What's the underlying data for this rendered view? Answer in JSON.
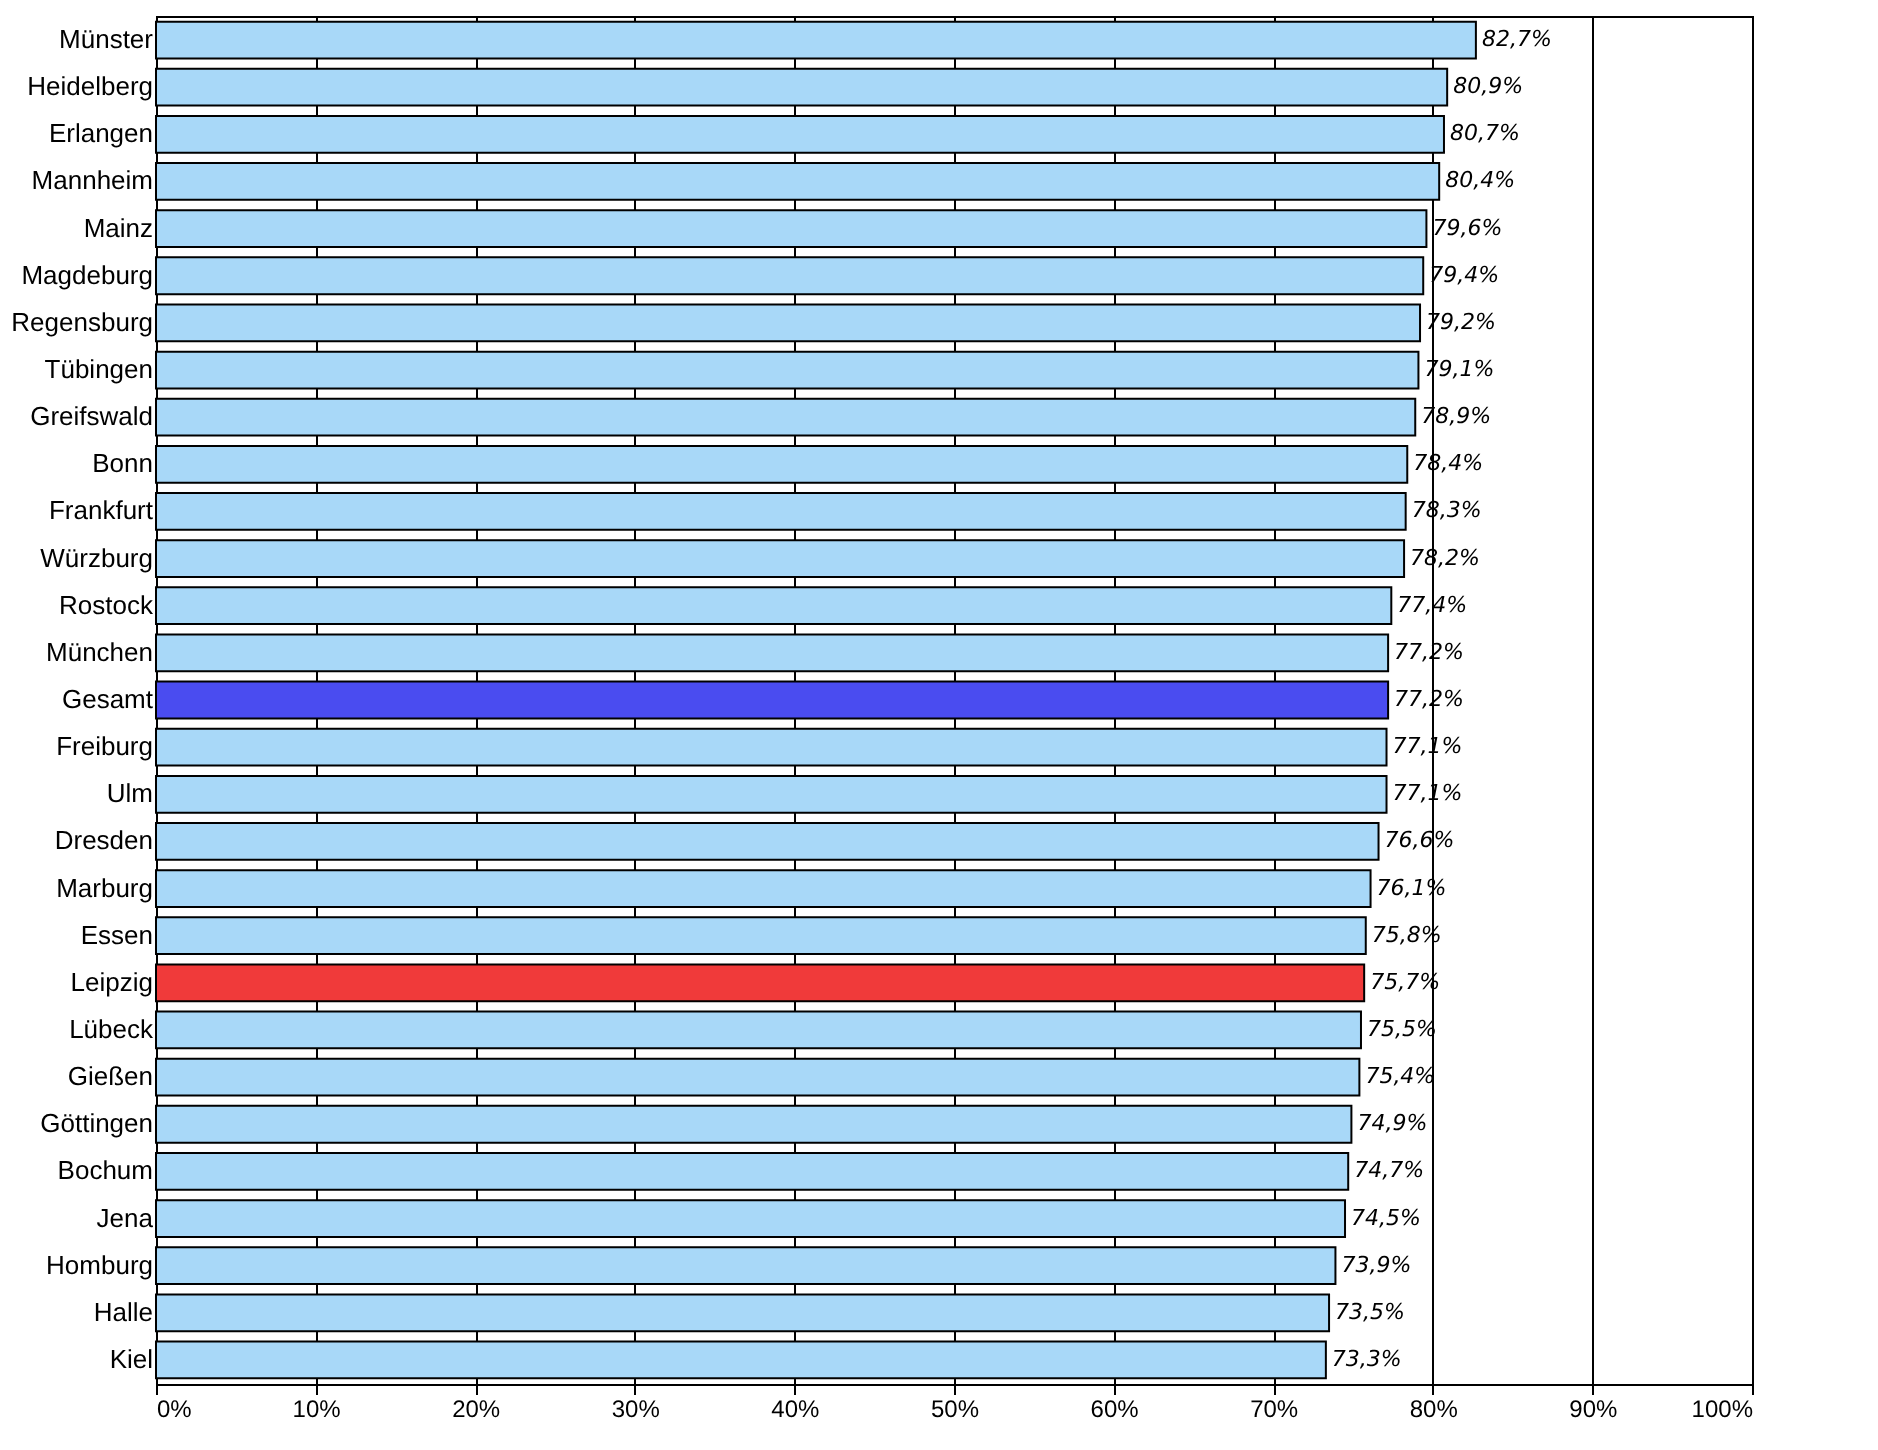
{
  "chart_data": {
    "type": "bar",
    "orientation": "horizontal",
    "categories": [
      "Münster",
      "Heidelberg",
      "Erlangen",
      "Mannheim",
      "Mainz",
      "Magdeburg",
      "Regensburg",
      "Tübingen",
      "Greifswald",
      "Bonn",
      "Frankfurt",
      "Würzburg",
      "Rostock",
      "München",
      "Gesamt",
      "Freiburg",
      "Ulm",
      "Dresden",
      "Marburg",
      "Essen",
      "Leipzig",
      "Lübeck",
      "Gießen",
      "Göttingen",
      "Bochum",
      "Jena",
      "Homburg",
      "Halle",
      "Kiel"
    ],
    "values": [
      82.7,
      80.9,
      80.7,
      80.4,
      79.6,
      79.4,
      79.2,
      79.1,
      78.9,
      78.4,
      78.3,
      78.2,
      77.4,
      77.2,
      77.2,
      77.1,
      77.1,
      76.6,
      76.1,
      75.8,
      75.7,
      75.5,
      75.4,
      74.9,
      74.7,
      74.5,
      73.9,
      73.5,
      73.3
    ],
    "value_labels": [
      "82,7%",
      "80,9%",
      "80,7%",
      "80,4%",
      "79,6%",
      "79,4%",
      "79,2%",
      "79,1%",
      "78,9%",
      "78,4%",
      "78,3%",
      "78,2%",
      "77,4%",
      "77,2%",
      "77,2%",
      "77,1%",
      "77,1%",
      "76,6%",
      "76,1%",
      "75,8%",
      "75,7%",
      "75,5%",
      "75,4%",
      "74,9%",
      "74,7%",
      "74,5%",
      "73,9%",
      "73,5%",
      "73,3%"
    ],
    "colors": [
      "#a8d8f8",
      "#a8d8f8",
      "#a8d8f8",
      "#a8d8f8",
      "#a8d8f8",
      "#a8d8f8",
      "#a8d8f8",
      "#a8d8f8",
      "#a8d8f8",
      "#a8d8f8",
      "#a8d8f8",
      "#a8d8f8",
      "#a8d8f8",
      "#a8d8f8",
      "#4a4cf0",
      "#a8d8f8",
      "#a8d8f8",
      "#a8d8f8",
      "#a8d8f8",
      "#a8d8f8",
      "#f03a3a",
      "#a8d8f8",
      "#a8d8f8",
      "#a8d8f8",
      "#a8d8f8",
      "#a8d8f8",
      "#a8d8f8",
      "#a8d8f8",
      "#a8d8f8"
    ],
    "xlim": [
      0,
      100
    ],
    "xticks": [
      {
        "value": 0,
        "label": "0%"
      },
      {
        "value": 10,
        "label": "10%"
      },
      {
        "value": 20,
        "label": "20%"
      },
      {
        "value": 30,
        "label": "30%"
      },
      {
        "value": 40,
        "label": "40%"
      },
      {
        "value": 50,
        "label": "50%"
      },
      {
        "value": 60,
        "label": "60%"
      },
      {
        "value": 70,
        "label": "70%"
      },
      {
        "value": 80,
        "label": "80%"
      },
      {
        "value": 90,
        "label": "90%"
      },
      {
        "value": 100,
        "label": "100%"
      }
    ],
    "grid": "x"
  }
}
